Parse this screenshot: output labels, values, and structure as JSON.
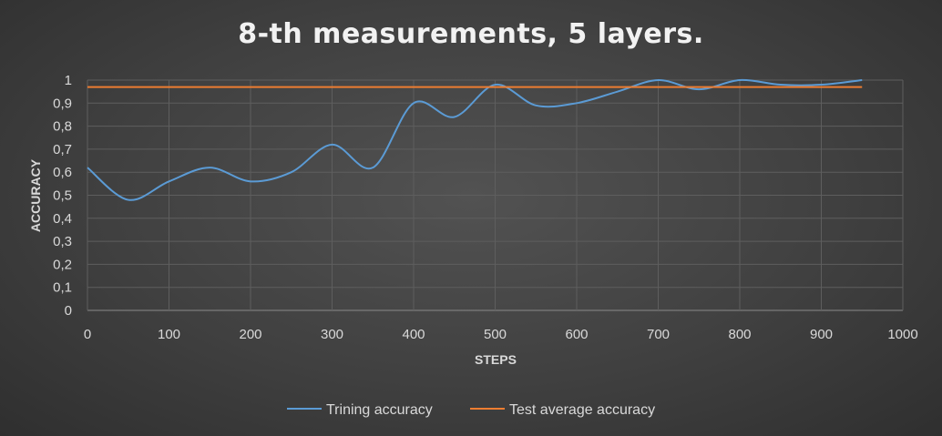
{
  "chart_data": {
    "type": "line",
    "title": "8-th measurements, 5 layers.",
    "xlabel": "STEPS",
    "ylabel": "ACCURACY",
    "xlim": [
      0,
      1000
    ],
    "ylim": [
      0,
      1
    ],
    "x_ticks": [
      "0",
      "100",
      "200",
      "300",
      "400",
      "500",
      "600",
      "700",
      "800",
      "900",
      "1000"
    ],
    "y_ticks": [
      "0",
      "0,1",
      "0,2",
      "0,3",
      "0,4",
      "0,5",
      "0,6",
      "0,7",
      "0,8",
      "0,9",
      "1"
    ],
    "grid": true,
    "legend_position": "bottom",
    "series": [
      {
        "name": "Trining accuracy",
        "color": "#5b9bd5",
        "x": [
          0,
          50,
          100,
          150,
          200,
          250,
          300,
          350,
          400,
          450,
          500,
          550,
          600,
          650,
          700,
          750,
          800,
          850,
          900,
          950
        ],
        "y": [
          0.62,
          0.48,
          0.56,
          0.62,
          0.56,
          0.6,
          0.72,
          0.62,
          0.9,
          0.84,
          0.98,
          0.89,
          0.9,
          0.95,
          1.0,
          0.96,
          1.0,
          0.98,
          0.98,
          1.0
        ]
      },
      {
        "name": "Test average accuracy",
        "color": "#ed7d31",
        "x": [
          0,
          950
        ],
        "y": [
          0.97,
          0.97
        ]
      }
    ]
  }
}
